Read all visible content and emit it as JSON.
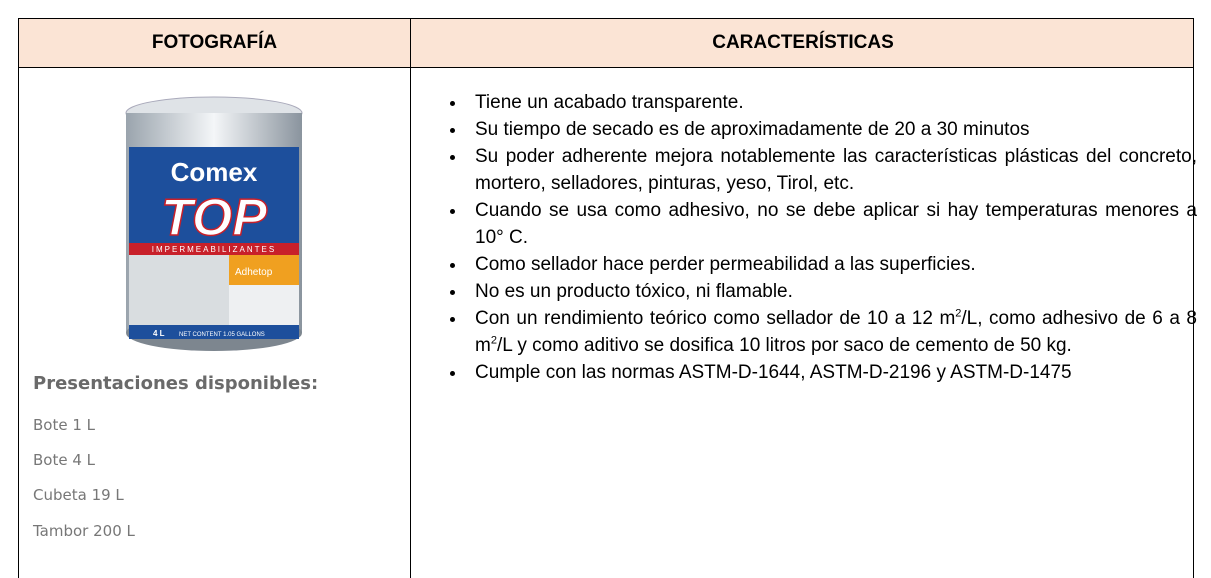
{
  "table": {
    "headers": [
      "FOTOGRAFÍA",
      "CARACTERÍSTICAS"
    ],
    "photo": {
      "brand": "Comex",
      "line": "TOP",
      "category": "IMPERMEABILIZANTES",
      "product": "Adhetop",
      "size": "4 L",
      "net": "NET CONTENT 1.05 GALLONS"
    },
    "presentations_title": "Presentaciones disponibles:",
    "presentations": [
      "Bote 1 L",
      "Bote 4 L",
      "Cubeta 19 L",
      "Tambor 200 L"
    ],
    "features": [
      [
        "Tiene un acabado transparente."
      ],
      [
        "Su tiempo de secado es de aproximadamente de 20 a 30 minutos"
      ],
      [
        "Su poder adherente mejora notablemente las características plásticas del concreto, mortero, selladores, pinturas, yeso, Tirol, etc."
      ],
      [
        "Cuando se usa como adhesivo, no se debe aplicar si hay temperaturas menores a 10° C."
      ],
      [
        "Como sellador hace perder permeabilidad a las superficies."
      ],
      [
        "No es un producto tóxico, ni flamable."
      ],
      [
        "Con un rendimiento teórico como sellador de 10 a 12 m",
        "2",
        "/L, como adhesivo de 6 a 8 m",
        "2",
        "/L y como aditivo se dosifica 10 litros por saco de cemento de 50 kg."
      ],
      [
        "Cumple con las normas ASTM-D-1644, ASTM-D-2196 y ASTM-D-1475"
      ]
    ]
  }
}
